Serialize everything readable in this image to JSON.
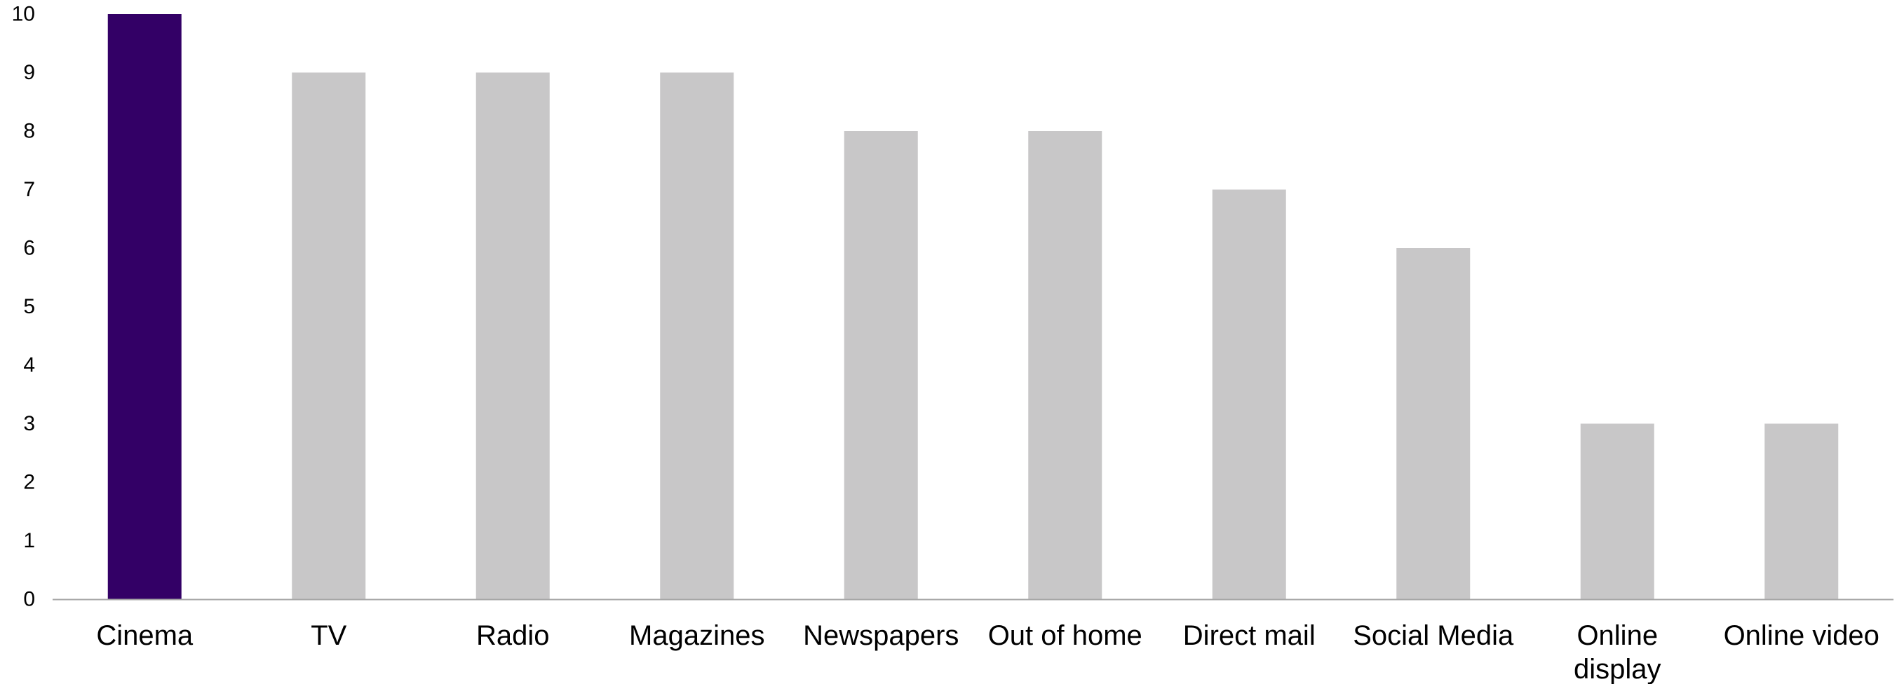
{
  "chart_data": {
    "type": "bar",
    "categories": [
      "Cinema",
      "TV",
      "Radio",
      "Magazines",
      "Newspapers",
      "Out of home",
      "Direct mail",
      "Social Media",
      "Online display",
      "Online video"
    ],
    "category_label_lines": [
      [
        "Cinema"
      ],
      [
        "TV"
      ],
      [
        "Radio"
      ],
      [
        "Magazines"
      ],
      [
        "Newspapers"
      ],
      [
        "Out of home"
      ],
      [
        "Direct mail"
      ],
      [
        "Social Media"
      ],
      [
        "Online",
        "display"
      ],
      [
        "Online video"
      ]
    ],
    "values": [
      10,
      9,
      9,
      9,
      8,
      8,
      7,
      6,
      3,
      3
    ],
    "ylim": [
      0,
      10
    ],
    "yticks": [
      0,
      1,
      2,
      3,
      4,
      5,
      6,
      7,
      8,
      9,
      10
    ],
    "title": "",
    "xlabel": "",
    "ylabel": "",
    "grid": false,
    "legend": "none",
    "highlight_index": 0,
    "colors": {
      "highlight": "#330066",
      "default": "#c8c7c8",
      "axis": "#a6a6a6"
    }
  }
}
